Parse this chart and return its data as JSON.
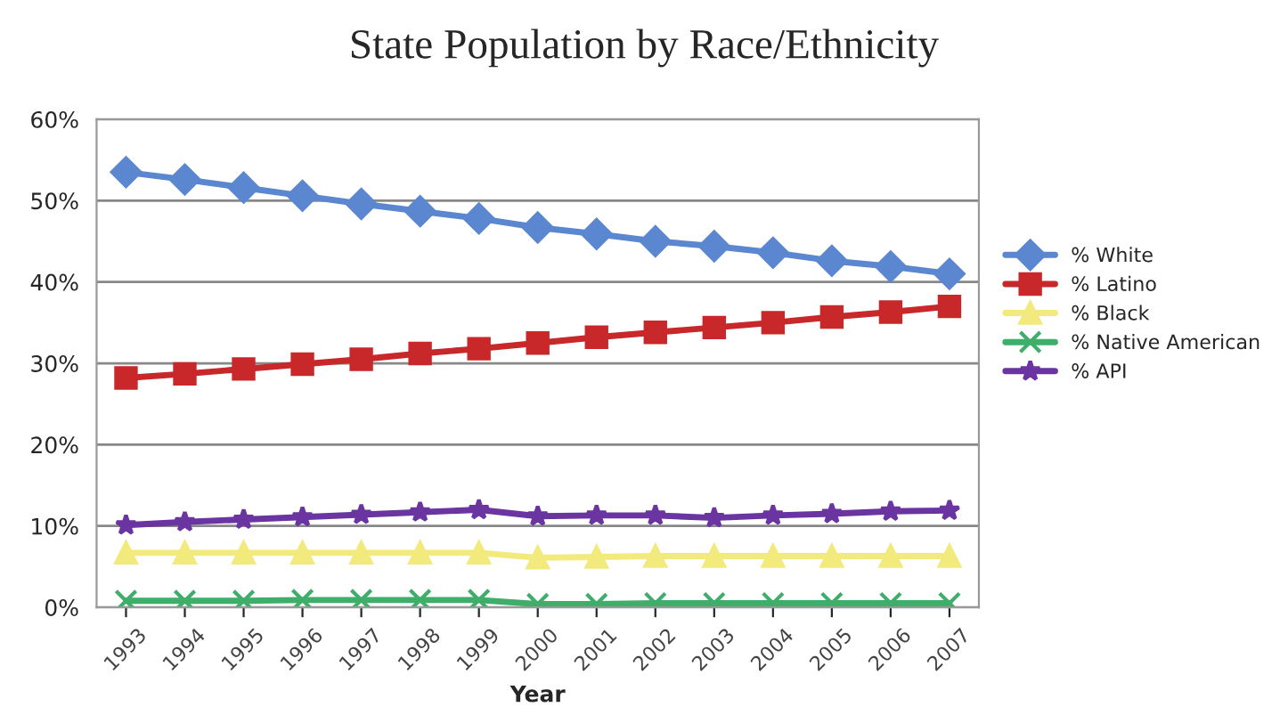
{
  "chart_data": {
    "type": "line",
    "title": "State Population by Race/Ethnicity",
    "xlabel": "Year",
    "categories": [
      "1993",
      "1994",
      "1995",
      "1996",
      "1997",
      "1998",
      "1999",
      "2000",
      "2001",
      "2002",
      "2003",
      "2004",
      "2005",
      "2006",
      "2007"
    ],
    "series": [
      {
        "name": "% White",
        "color": "#5b87d0",
        "marker": "diamond",
        "values": [
          53.5,
          52.6,
          51.6,
          50.6,
          49.6,
          48.7,
          47.8,
          46.7,
          45.9,
          45.0,
          44.4,
          43.6,
          42.6,
          41.9,
          41.0
        ]
      },
      {
        "name": "% Latino",
        "color": "#c8282a",
        "marker": "square",
        "values": [
          28.2,
          28.7,
          29.3,
          29.9,
          30.5,
          31.2,
          31.8,
          32.5,
          33.2,
          33.8,
          34.4,
          35.0,
          35.7,
          36.3,
          37.0
        ]
      },
      {
        "name": "% Black",
        "color": "#f2ea7c",
        "marker": "triangle",
        "values": [
          6.7,
          6.7,
          6.7,
          6.7,
          6.7,
          6.7,
          6.7,
          6.1,
          6.2,
          6.3,
          6.3,
          6.3,
          6.3,
          6.3,
          6.3
        ]
      },
      {
        "name": "% Native American",
        "color": "#3fae6a",
        "marker": "cross",
        "values": [
          0.8,
          0.8,
          0.8,
          0.9,
          0.9,
          0.9,
          0.9,
          0.4,
          0.4,
          0.5,
          0.5,
          0.5,
          0.5,
          0.5,
          0.5
        ]
      },
      {
        "name": "% API",
        "color": "#6a35a0",
        "marker": "star",
        "values": [
          10.1,
          10.5,
          10.8,
          11.1,
          11.4,
          11.7,
          12.0,
          11.2,
          11.3,
          11.3,
          11.0,
          11.3,
          11.5,
          11.8,
          11.9
        ]
      }
    ],
    "ylim": [
      0,
      60
    ],
    "yticks": [
      {
        "value": 0,
        "label": "0%"
      },
      {
        "value": 10,
        "label": "10%"
      },
      {
        "value": 20,
        "label": "20%"
      },
      {
        "value": 30,
        "label": "30%"
      },
      {
        "value": 40,
        "label": "40%"
      },
      {
        "value": 50,
        "label": "50%"
      },
      {
        "value": 60,
        "label": "60%"
      }
    ],
    "grid": "y",
    "legend": "right"
  }
}
